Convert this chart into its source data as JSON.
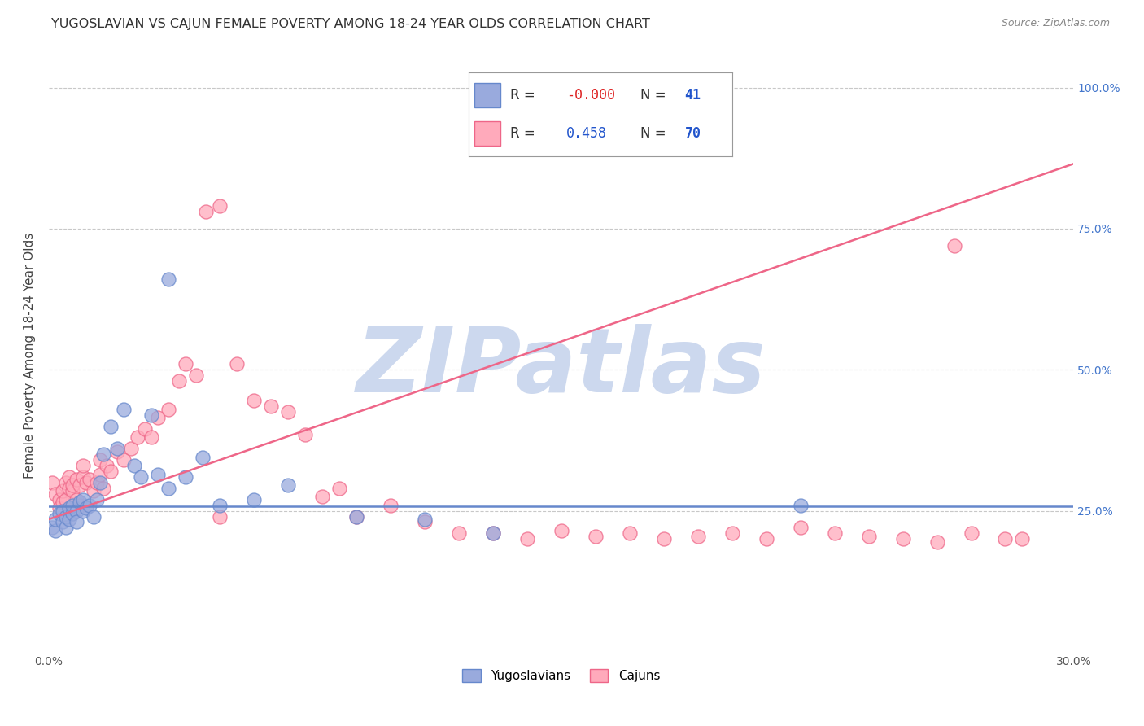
{
  "title": "YUGOSLAVIAN VS CAJUN FEMALE POVERTY AMONG 18-24 YEAR OLDS CORRELATION CHART",
  "source": "Source: ZipAtlas.com",
  "ylabel": "Female Poverty Among 18-24 Year Olds",
  "xlim": [
    0.0,
    0.3
  ],
  "ylim": [
    0.0,
    1.05
  ],
  "yticks": [
    0.25,
    0.5,
    0.75,
    1.0
  ],
  "ytick_labels": [
    "25.0%",
    "50.0%",
    "75.0%",
    "100.0%"
  ],
  "background_color": "#ffffff",
  "grid_color": "#c8c8c8",
  "watermark_text": "ZIPatlas",
  "watermark_color": "#ccd8ee",
  "blue_color": "#6688cc",
  "blue_fill": "#99aadd",
  "pink_color": "#ee6688",
  "pink_fill": "#ffaabb",
  "legend_R_blue": "-0.000",
  "legend_N_blue": "41",
  "legend_R_pink": "0.458",
  "legend_N_pink": "70",
  "legend_R_color": "#dd2222",
  "legend_N_color": "#2255cc",
  "legend_val_color": "#2255cc",
  "blue_line_y": 0.258,
  "pink_line_x0": 0.0,
  "pink_line_y0": 0.235,
  "pink_line_x1": 0.3,
  "pink_line_y1": 0.865,
  "blue_scatter_x": [
    0.001,
    0.002,
    0.002,
    0.003,
    0.004,
    0.004,
    0.005,
    0.005,
    0.006,
    0.006,
    0.007,
    0.007,
    0.008,
    0.008,
    0.009,
    0.01,
    0.01,
    0.011,
    0.012,
    0.013,
    0.014,
    0.015,
    0.016,
    0.018,
    0.02,
    0.022,
    0.025,
    0.027,
    0.03,
    0.032,
    0.035,
    0.04,
    0.045,
    0.05,
    0.06,
    0.07,
    0.09,
    0.11,
    0.13,
    0.22,
    0.035
  ],
  "blue_scatter_y": [
    0.22,
    0.215,
    0.235,
    0.245,
    0.23,
    0.25,
    0.22,
    0.24,
    0.255,
    0.235,
    0.245,
    0.26,
    0.25,
    0.23,
    0.265,
    0.25,
    0.27,
    0.255,
    0.26,
    0.24,
    0.27,
    0.3,
    0.35,
    0.4,
    0.36,
    0.43,
    0.33,
    0.31,
    0.42,
    0.315,
    0.29,
    0.31,
    0.345,
    0.26,
    0.27,
    0.295,
    0.24,
    0.235,
    0.21,
    0.26,
    0.66
  ],
  "pink_scatter_x": [
    0.001,
    0.002,
    0.003,
    0.003,
    0.004,
    0.004,
    0.005,
    0.005,
    0.006,
    0.006,
    0.007,
    0.007,
    0.008,
    0.008,
    0.009,
    0.009,
    0.01,
    0.01,
    0.011,
    0.012,
    0.013,
    0.014,
    0.015,
    0.015,
    0.016,
    0.017,
    0.018,
    0.02,
    0.022,
    0.024,
    0.026,
    0.028,
    0.03,
    0.032,
    0.035,
    0.038,
    0.04,
    0.043,
    0.046,
    0.05,
    0.055,
    0.06,
    0.065,
    0.07,
    0.075,
    0.08,
    0.085,
    0.09,
    0.1,
    0.11,
    0.12,
    0.13,
    0.14,
    0.15,
    0.16,
    0.17,
    0.18,
    0.19,
    0.2,
    0.21,
    0.22,
    0.23,
    0.24,
    0.25,
    0.26,
    0.265,
    0.27,
    0.28,
    0.285,
    0.05
  ],
  "pink_scatter_y": [
    0.3,
    0.28,
    0.27,
    0.255,
    0.265,
    0.285,
    0.27,
    0.3,
    0.29,
    0.31,
    0.285,
    0.295,
    0.305,
    0.27,
    0.26,
    0.295,
    0.31,
    0.33,
    0.3,
    0.305,
    0.285,
    0.3,
    0.315,
    0.34,
    0.29,
    0.33,
    0.32,
    0.355,
    0.34,
    0.36,
    0.38,
    0.395,
    0.38,
    0.415,
    0.43,
    0.48,
    0.51,
    0.49,
    0.78,
    0.79,
    0.51,
    0.445,
    0.435,
    0.425,
    0.385,
    0.275,
    0.29,
    0.24,
    0.26,
    0.23,
    0.21,
    0.21,
    0.2,
    0.215,
    0.205,
    0.21,
    0.2,
    0.205,
    0.21,
    0.2,
    0.22,
    0.21,
    0.205,
    0.2,
    0.195,
    0.72,
    0.21,
    0.2,
    0.2,
    0.24
  ]
}
